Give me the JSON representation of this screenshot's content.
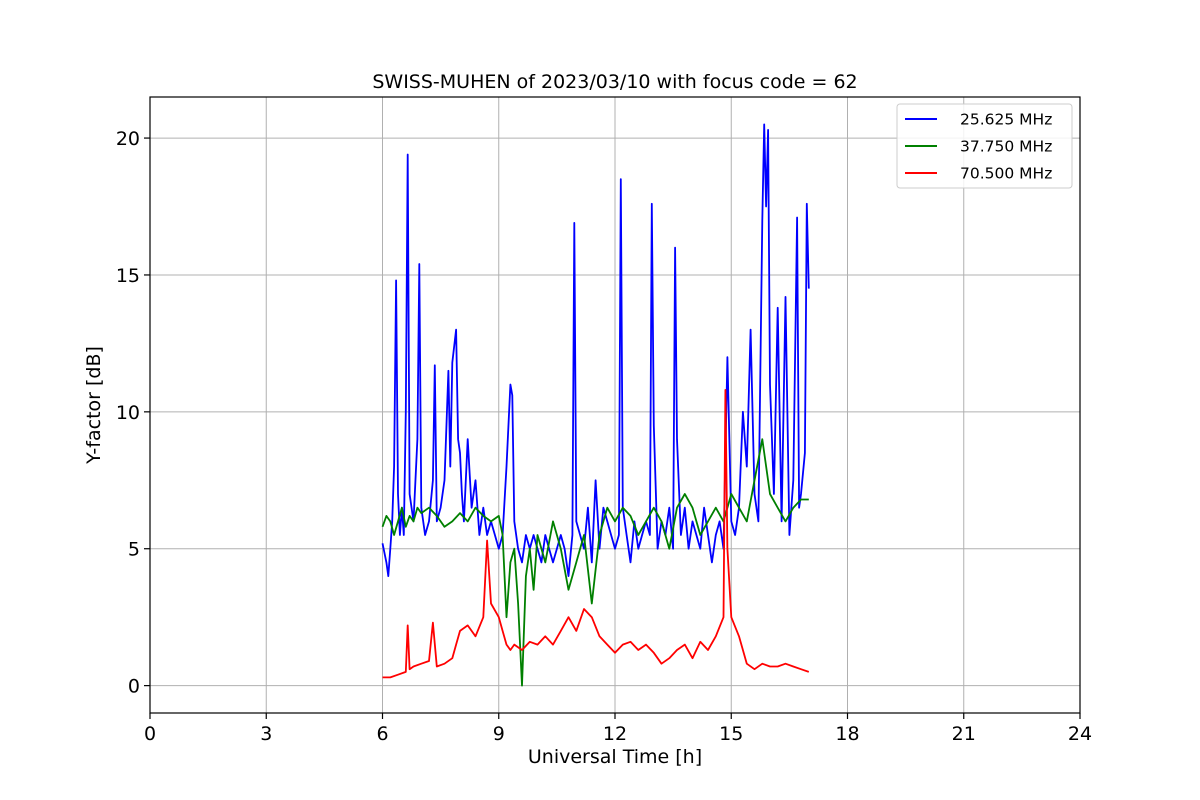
{
  "chart_data": {
    "type": "line",
    "title": "SWISS-MUHEN of 2023/03/10 with focus code = 62",
    "xlabel": "Universal Time [h]",
    "ylabel": "Y-factor [dB]",
    "xlim": [
      0,
      24
    ],
    "ylim": [
      -1,
      21.5
    ],
    "xticks": [
      0,
      3,
      6,
      9,
      12,
      15,
      18,
      21,
      24
    ],
    "yticks": [
      0,
      5,
      10,
      15,
      20
    ],
    "grid": true,
    "legend_position": "top-right",
    "series": [
      {
        "name": "25.625 MHz",
        "color": "#0000ff",
        "x": [
          6.0,
          6.1,
          6.15,
          6.2,
          6.25,
          6.3,
          6.35,
          6.4,
          6.45,
          6.5,
          6.55,
          6.6,
          6.65,
          6.7,
          6.8,
          6.9,
          6.95,
          7.0,
          7.1,
          7.2,
          7.3,
          7.35,
          7.4,
          7.5,
          7.6,
          7.7,
          7.75,
          7.8,
          7.9,
          7.95,
          8.0,
          8.05,
          8.1,
          8.2,
          8.3,
          8.4,
          8.5,
          8.6,
          8.7,
          8.8,
          8.9,
          9.0,
          9.1,
          9.2,
          9.3,
          9.35,
          9.4,
          9.5,
          9.6,
          9.7,
          9.8,
          9.9,
          10.0,
          10.1,
          10.2,
          10.3,
          10.4,
          10.5,
          10.6,
          10.7,
          10.8,
          10.9,
          10.95,
          11.0,
          11.1,
          11.2,
          11.3,
          11.4,
          11.5,
          11.6,
          11.7,
          11.8,
          11.9,
          12.0,
          12.1,
          12.15,
          12.2,
          12.3,
          12.4,
          12.5,
          12.6,
          12.7,
          12.8,
          12.9,
          12.95,
          13.0,
          13.1,
          13.2,
          13.3,
          13.4,
          13.5,
          13.55,
          13.6,
          13.7,
          13.8,
          13.9,
          14.0,
          14.1,
          14.2,
          14.3,
          14.4,
          14.5,
          14.6,
          14.7,
          14.8,
          14.9,
          15.0,
          15.1,
          15.2,
          15.3,
          15.4,
          15.5,
          15.6,
          15.7,
          15.8,
          15.85,
          15.9,
          15.95,
          16.0,
          16.1,
          16.2,
          16.3,
          16.4,
          16.5,
          16.6,
          16.7,
          16.75,
          16.8,
          16.9,
          16.95,
          17.0
        ],
        "y": [
          5.2,
          4.5,
          4.0,
          5.0,
          6.0,
          8.0,
          14.8,
          7.0,
          5.5,
          6.5,
          5.5,
          10.0,
          19.4,
          7.0,
          6.0,
          9.0,
          15.4,
          6.5,
          5.5,
          6.0,
          7.5,
          11.7,
          6.0,
          6.5,
          7.5,
          11.5,
          8.0,
          11.8,
          13.0,
          9.0,
          8.5,
          7.0,
          6.0,
          9.0,
          6.5,
          7.5,
          5.5,
          6.5,
          5.5,
          6.0,
          5.5,
          5.0,
          5.5,
          8.0,
          11.0,
          10.6,
          6.0,
          5.0,
          4.5,
          5.5,
          5.0,
          5.5,
          5.0,
          4.5,
          5.5,
          5.0,
          4.5,
          5.0,
          5.5,
          5.0,
          4.0,
          5.5,
          16.9,
          6.0,
          5.5,
          5.0,
          6.5,
          4.5,
          7.5,
          5.0,
          6.5,
          6.0,
          5.5,
          5.0,
          5.5,
          18.5,
          6.5,
          5.5,
          4.5,
          6.0,
          5.0,
          5.5,
          6.0,
          5.5,
          17.6,
          9.5,
          5.0,
          6.0,
          5.5,
          6.5,
          5.0,
          16.0,
          9.0,
          5.5,
          6.5,
          5.0,
          6.0,
          5.5,
          5.0,
          6.5,
          5.5,
          4.5,
          5.5,
          6.0,
          5.0,
          12.0,
          6.0,
          5.5,
          6.5,
          10.0,
          8.0,
          13.0,
          7.0,
          6.0,
          17.0,
          20.5,
          17.5,
          20.3,
          11.0,
          7.0,
          13.8,
          6.0,
          14.2,
          5.5,
          7.5,
          17.1,
          6.5,
          7.0,
          8.5,
          17.6,
          14.5
        ]
      },
      {
        "name": "37.750 MHz",
        "color": "#008000",
        "x": [
          6.0,
          6.1,
          6.2,
          6.3,
          6.4,
          6.5,
          6.6,
          6.7,
          6.8,
          6.9,
          7.0,
          7.2,
          7.4,
          7.6,
          7.8,
          8.0,
          8.2,
          8.4,
          8.6,
          8.8,
          9.0,
          9.1,
          9.2,
          9.3,
          9.4,
          9.5,
          9.6,
          9.7,
          9.8,
          9.9,
          10.0,
          10.2,
          10.4,
          10.6,
          10.8,
          11.0,
          11.2,
          11.4,
          11.6,
          11.8,
          12.0,
          12.2,
          12.4,
          12.6,
          12.8,
          13.0,
          13.2,
          13.4,
          13.6,
          13.8,
          14.0,
          14.2,
          14.4,
          14.6,
          14.8,
          15.0,
          15.2,
          15.4,
          15.6,
          15.8,
          16.0,
          16.2,
          16.4,
          16.6,
          16.8,
          17.0
        ],
        "y": [
          5.8,
          6.2,
          6.0,
          5.5,
          6.0,
          6.5,
          5.8,
          6.2,
          6.0,
          6.5,
          6.3,
          6.5,
          6.2,
          5.8,
          6.0,
          6.3,
          6.0,
          6.5,
          6.2,
          6.0,
          6.2,
          5.5,
          2.5,
          4.5,
          5.0,
          3.0,
          0.0,
          4.0,
          5.0,
          3.5,
          5.5,
          4.5,
          6.0,
          5.0,
          3.5,
          4.5,
          5.5,
          3.0,
          5.5,
          6.5,
          6.0,
          6.5,
          6.2,
          5.5,
          6.0,
          6.5,
          6.0,
          5.0,
          6.5,
          7.0,
          6.5,
          5.5,
          6.0,
          6.5,
          6.0,
          7.0,
          6.5,
          6.0,
          7.5,
          9.0,
          7.0,
          6.5,
          6.0,
          6.5,
          6.8,
          6.8
        ]
      },
      {
        "name": "70.500 MHz",
        "color": "#ff0000",
        "x": [
          6.0,
          6.2,
          6.4,
          6.6,
          6.65,
          6.7,
          6.8,
          7.0,
          7.2,
          7.3,
          7.4,
          7.6,
          7.8,
          7.9,
          8.0,
          8.2,
          8.4,
          8.6,
          8.7,
          8.8,
          9.0,
          9.1,
          9.2,
          9.3,
          9.4,
          9.6,
          9.8,
          10.0,
          10.2,
          10.4,
          10.6,
          10.8,
          11.0,
          11.2,
          11.4,
          11.6,
          11.8,
          12.0,
          12.2,
          12.4,
          12.6,
          12.8,
          13.0,
          13.2,
          13.4,
          13.6,
          13.8,
          14.0,
          14.2,
          14.4,
          14.6,
          14.8,
          14.85,
          14.9,
          15.0,
          15.2,
          15.4,
          15.6,
          15.8,
          16.0,
          16.2,
          16.4,
          16.6,
          16.8,
          17.0
        ],
        "y": [
          0.3,
          0.3,
          0.4,
          0.5,
          2.2,
          0.6,
          0.7,
          0.8,
          0.9,
          2.3,
          0.7,
          0.8,
          1.0,
          1.5,
          2.0,
          2.2,
          1.8,
          2.5,
          5.3,
          3.0,
          2.5,
          2.0,
          1.5,
          1.3,
          1.5,
          1.3,
          1.6,
          1.5,
          1.8,
          1.5,
          2.0,
          2.5,
          2.0,
          2.8,
          2.5,
          1.8,
          1.5,
          1.2,
          1.5,
          1.6,
          1.3,
          1.5,
          1.2,
          0.8,
          1.0,
          1.3,
          1.5,
          1.0,
          1.6,
          1.3,
          1.8,
          2.5,
          10.8,
          5.0,
          2.5,
          1.8,
          0.8,
          0.6,
          0.8,
          0.7,
          0.7,
          0.8,
          0.7,
          0.6,
          0.5
        ]
      }
    ]
  }
}
